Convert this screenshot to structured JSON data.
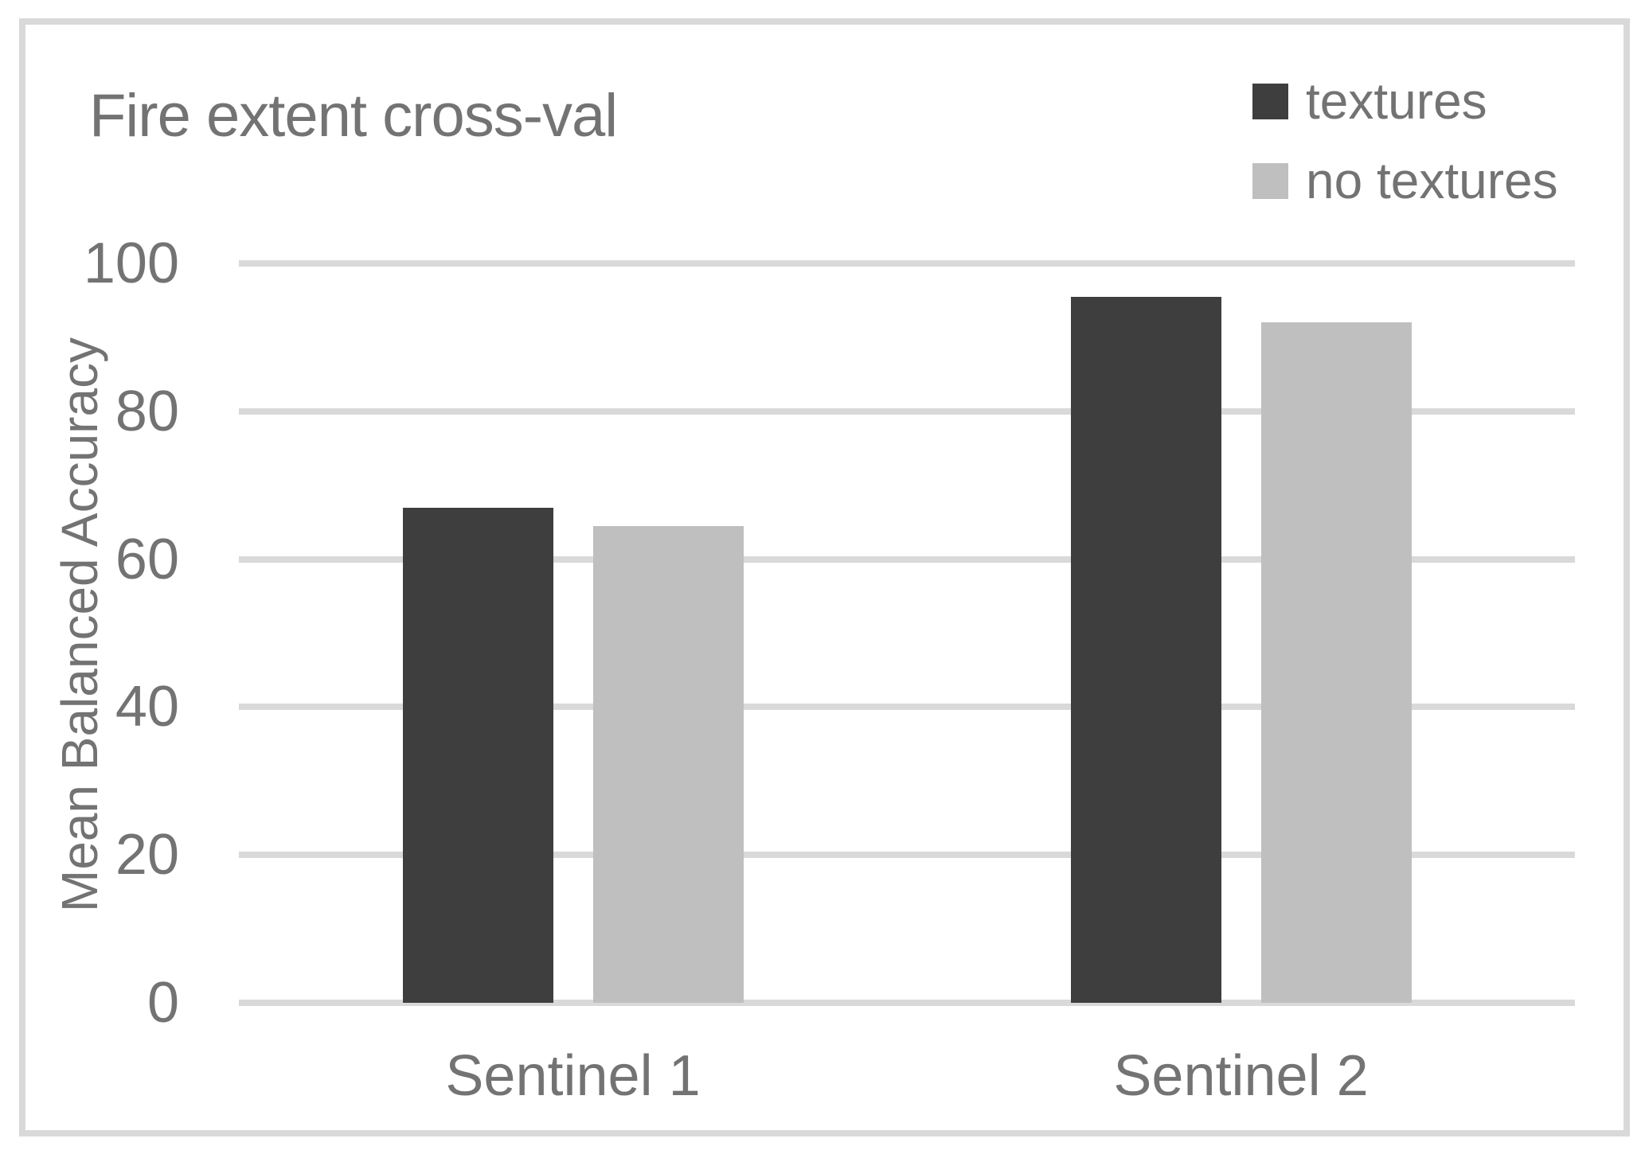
{
  "chart_data": {
    "type": "bar",
    "title": "Fire extent cross-val",
    "xlabel": "",
    "ylabel": "Mean Balanced Accuracy",
    "categories": [
      "Sentinel 1",
      "Sentinel 2"
    ],
    "series": [
      {
        "name": "textures",
        "color": "#3e3e3e",
        "values": [
          67,
          95.5
        ]
      },
      {
        "name": "no textures",
        "color": "#bfbfbf",
        "values": [
          64.5,
          92
        ]
      }
    ],
    "ylim": [
      0,
      100
    ],
    "yticks": [
      0,
      20,
      40,
      60,
      80,
      100
    ],
    "grid": "horizontal",
    "legend_position": "top-right",
    "colors": {
      "gridline": "#d9d9d9",
      "frame_border": "#d9d9d9",
      "text": "#737373",
      "background": "#ffffff"
    }
  }
}
